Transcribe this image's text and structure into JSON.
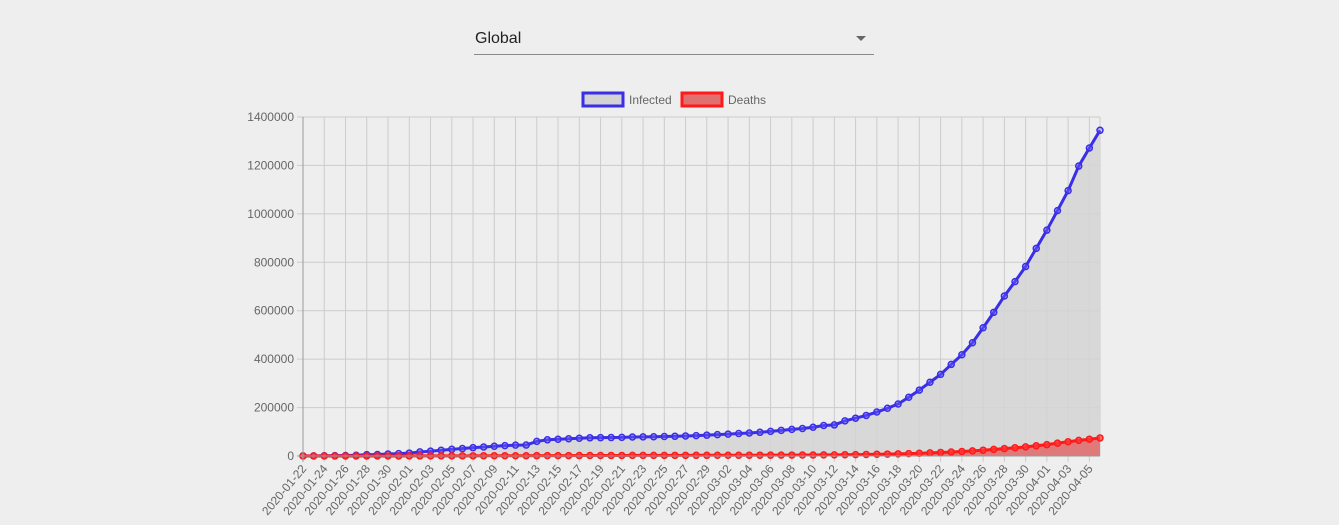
{
  "region_select": {
    "value": "Global"
  },
  "chart_data": {
    "type": "line",
    "title": "",
    "xlabel": "",
    "ylabel": "",
    "ylim": [
      0,
      1400000
    ],
    "y_ticks": [
      0,
      200000,
      400000,
      600000,
      800000,
      1000000,
      1200000,
      1400000
    ],
    "grid": true,
    "legend_placement": "top-center",
    "x": [
      "2020-01-22",
      "2020-01-23",
      "2020-01-24",
      "2020-01-25",
      "2020-01-26",
      "2020-01-27",
      "2020-01-28",
      "2020-01-29",
      "2020-01-30",
      "2020-01-31",
      "2020-02-01",
      "2020-02-02",
      "2020-02-03",
      "2020-02-04",
      "2020-02-05",
      "2020-02-06",
      "2020-02-07",
      "2020-02-08",
      "2020-02-09",
      "2020-02-10",
      "2020-02-11",
      "2020-02-12",
      "2020-02-13",
      "2020-02-14",
      "2020-02-15",
      "2020-02-16",
      "2020-02-17",
      "2020-02-18",
      "2020-02-19",
      "2020-02-20",
      "2020-02-21",
      "2020-02-22",
      "2020-02-23",
      "2020-02-24",
      "2020-02-25",
      "2020-02-26",
      "2020-02-27",
      "2020-02-28",
      "2020-02-29",
      "2020-03-01",
      "2020-03-02",
      "2020-03-03",
      "2020-03-04",
      "2020-03-05",
      "2020-03-06",
      "2020-03-07",
      "2020-03-08",
      "2020-03-09",
      "2020-03-10",
      "2020-03-11",
      "2020-03-12",
      "2020-03-13",
      "2020-03-14",
      "2020-03-15",
      "2020-03-16",
      "2020-03-17",
      "2020-03-18",
      "2020-03-19",
      "2020-03-20",
      "2020-03-21",
      "2020-03-22",
      "2020-03-23",
      "2020-03-24",
      "2020-03-25",
      "2020-03-26",
      "2020-03-27",
      "2020-03-28",
      "2020-03-29",
      "2020-03-30",
      "2020-03-31",
      "2020-04-01",
      "2020-04-02",
      "2020-04-03",
      "2020-04-04",
      "2020-04-05",
      "2020-04-06"
    ],
    "x_tick_labels": [
      "2020-01-22",
      "2020-01-24",
      "2020-01-26",
      "2020-01-28",
      "2020-01-30",
      "2020-02-01",
      "2020-02-03",
      "2020-02-05",
      "2020-02-07",
      "2020-02-09",
      "2020-02-11",
      "2020-02-13",
      "2020-02-15",
      "2020-02-17",
      "2020-02-19",
      "2020-02-21",
      "2020-02-23",
      "2020-02-25",
      "2020-02-27",
      "2020-02-29",
      "2020-03-02",
      "2020-03-04",
      "2020-03-06",
      "2020-03-08",
      "2020-03-10",
      "2020-03-12",
      "2020-03-14",
      "2020-03-16",
      "2020-03-18",
      "2020-03-20",
      "2020-03-22",
      "2020-03-24",
      "2020-03-26",
      "2020-03-28",
      "2020-03-30",
      "2020-04-01",
      "2020-04-03",
      "2020-04-05"
    ],
    "series": [
      {
        "name": "Infected",
        "color": "#3a2ee6",
        "fill": "#d3d3d3",
        "values": [
          555,
          654,
          941,
          1434,
          2118,
          2927,
          5578,
          6166,
          8234,
          9927,
          12038,
          16787,
          19881,
          23892,
          27635,
          30794,
          34391,
          37120,
          40150,
          42762,
          44802,
          45221,
          60368,
          66885,
          69030,
          71224,
          73258,
          75136,
          75639,
          76197,
          76819,
          78572,
          78958,
          79561,
          80406,
          81388,
          82746,
          84112,
          86011,
          88369,
          90306,
          92840,
          95120,
          97886,
          101801,
          105847,
          109821,
          113590,
          118620,
          125875,
          128352,
          145205,
          156101,
          167454,
          181574,
          197102,
          214821,
          242570,
          272208,
          304507,
          336953,
          378235,
          418045,
          467653,
          529591,
          593291,
          660706,
          720117,
          782389,
          857487,
          932605,
          1013466,
          1095917,
          1197405,
          1272115,
          1345101
        ]
      },
      {
        "name": "Deaths",
        "color": "#ff1a1a",
        "fill": "#e07070",
        "values": [
          17,
          18,
          26,
          42,
          56,
          82,
          131,
          133,
          171,
          213,
          259,
          362,
          426,
          492,
          564,
          634,
          719,
          806,
          906,
          1013,
          1113,
          1118,
          1371,
          1523,
          1666,
          1770,
          1868,
          2007,
          2122,
          2247,
          2251,
          2458,
          2469,
          2629,
          2708,
          2770,
          2814,
          2872,
          2941,
          2996,
          3085,
          3160,
          3254,
          3348,
          3460,
          3558,
          3802,
          3988,
          4262,
          4615,
          4720,
          5404,
          5819,
          6440,
          7126,
          7905,
          8733,
          9867,
          11299,
          12973,
          14623,
          16497,
          18615,
          21181,
          23970,
          27198,
          30652,
          33925,
          37582,
          42107,
          46809,
          52983,
          58787,
          64606,
          69374,
          74565
        ]
      }
    ]
  }
}
